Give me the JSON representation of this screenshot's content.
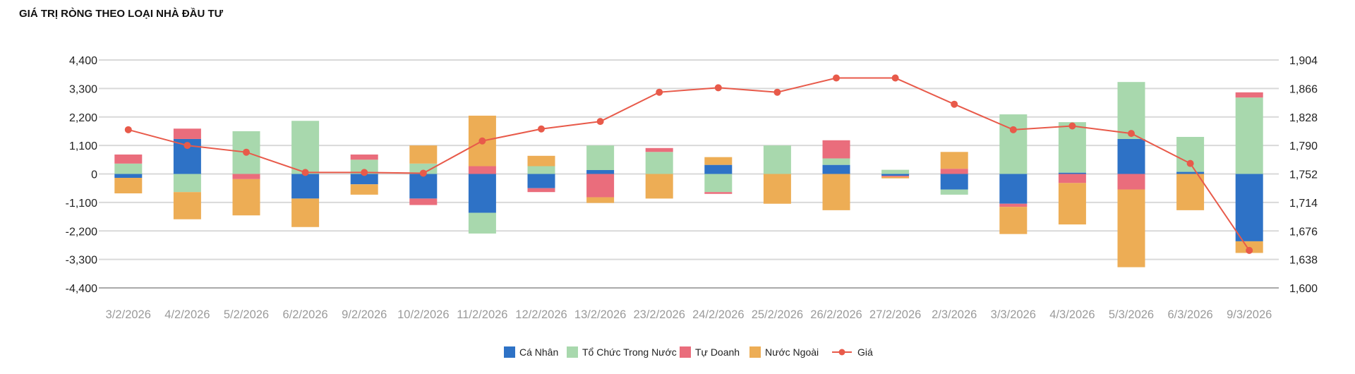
{
  "title": "GIÁ TRỊ RÒNG THEO LOẠI NHÀ ĐẦU TƯ",
  "chart_data": {
    "type": "bar",
    "stacked": true,
    "categories": [
      "3/2/2026",
      "4/2/2026",
      "5/2/2026",
      "6/2/2026",
      "9/2/2026",
      "10/2/2026",
      "11/2/2026",
      "12/2/2026",
      "13/2/2026",
      "23/2/2026",
      "24/2/2026",
      "25/2/2026",
      "26/2/2026",
      "27/2/2026",
      "2/3/2026",
      "3/3/2026",
      "4/3/2026",
      "5/3/2026",
      "6/3/2026",
      "9/3/2026"
    ],
    "left_axis": {
      "ticks": [
        "4,400",
        "3,300",
        "2,200",
        "1,100",
        "0",
        "-1,100",
        "-2,200",
        "-3,300",
        "-4,400"
      ],
      "ylim": [
        -4400,
        4400
      ]
    },
    "right_axis": {
      "ticks": [
        "1,904",
        "1,866",
        "1,828",
        "1,790",
        "1,752",
        "1,714",
        "1,676",
        "1,638",
        "1,600"
      ],
      "ylim": [
        1600,
        1904
      ]
    },
    "series": [
      {
        "name": "Cá Nhân",
        "color": "#2e72c6",
        "values": [
          -150,
          1350,
          0,
          -950,
          -400,
          -950,
          -1500,
          -550,
          150,
          0,
          350,
          0,
          350,
          -70,
          -600,
          -1150,
          50,
          1350,
          80,
          -2600
        ]
      },
      {
        "name": "Tổ Chức Trong Nước",
        "color": "#a8d8ad",
        "values": [
          400,
          -700,
          1650,
          2050,
          550,
          400,
          -800,
          300,
          950,
          850,
          -700,
          1100,
          250,
          160,
          -200,
          2300,
          1950,
          2200,
          1350,
          2950
        ]
      },
      {
        "name": "Tự Doanh",
        "color": "#ea6d7c",
        "values": [
          350,
          400,
          -200,
          0,
          200,
          -250,
          300,
          -150,
          -900,
          150,
          -70,
          0,
          700,
          -40,
          200,
          -120,
          -350,
          -600,
          0,
          200
        ]
      },
      {
        "name": "Nước Ngoài",
        "color": "#edad55",
        "values": [
          -600,
          -1050,
          -1400,
          -1100,
          -400,
          700,
          1950,
          400,
          -220,
          -950,
          300,
          -1150,
          -1400,
          -60,
          650,
          -1050,
          -1600,
          -3000,
          -1400,
          -450
        ]
      }
    ],
    "line": {
      "name": "Giá",
      "color": "#e85a4a",
      "axis": "right",
      "values": [
        1811,
        1790,
        1781,
        1754,
        1754,
        1753,
        1796,
        1812,
        1822,
        1861,
        1867,
        1861,
        1880,
        1880,
        1845,
        1811,
        1816,
        1806,
        1766,
        1650
      ]
    },
    "legend_position": "bottom",
    "grid": true
  }
}
